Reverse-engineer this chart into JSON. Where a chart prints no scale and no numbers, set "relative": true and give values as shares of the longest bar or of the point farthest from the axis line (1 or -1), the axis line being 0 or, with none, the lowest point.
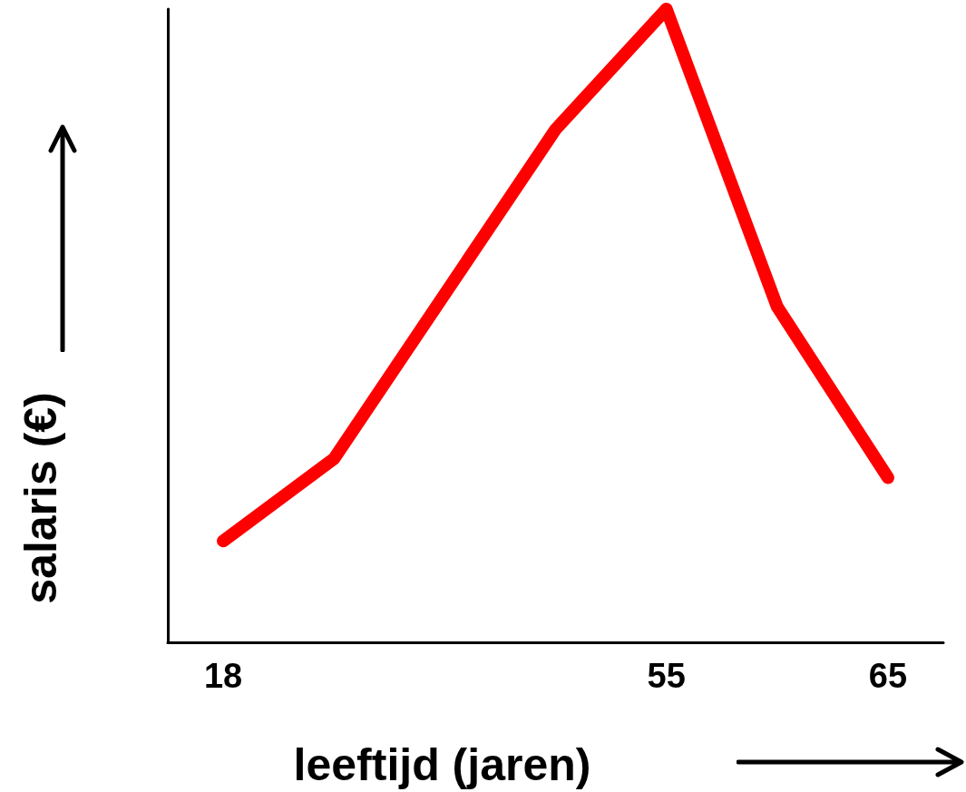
{
  "chart_data": {
    "type": "line",
    "xlabel": "leeftijd (jaren)",
    "ylabel": "salaris (€)",
    "relative": true,
    "categories": [
      "18",
      null,
      null,
      null,
      "55",
      null,
      "65"
    ],
    "series": [
      {
        "color": "#ff0000",
        "values": [
          0.16,
          0.29,
          0.55,
          0.81,
          1,
          0.53,
          0.26
        ]
      }
    ],
    "line_style": "solid"
  }
}
